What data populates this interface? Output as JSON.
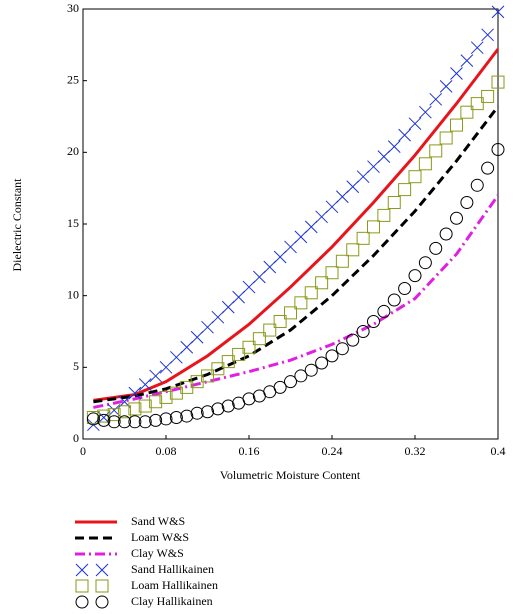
{
  "chart_data": {
    "type": "line",
    "x_label": "Volumetric Moisture Content",
    "y_label": "Dielectric Constant",
    "xlim": [
      0,
      0.4
    ],
    "xticks": [
      0,
      0.08,
      0.16,
      0.24,
      0.32,
      0.4
    ],
    "ylim": [
      0,
      30
    ],
    "yticks": [
      0,
      5,
      10,
      15,
      20,
      25,
      30
    ],
    "grid": false,
    "series": [
      {
        "name": "Sand W&S",
        "color": "#e8141c",
        "style": "solid",
        "x": [
          0.01,
          0.05,
          0.08,
          0.12,
          0.16,
          0.2,
          0.24,
          0.28,
          0.32,
          0.36,
          0.4
        ],
        "values": [
          2.7,
          3.1,
          4.0,
          5.8,
          8.0,
          10.6,
          13.4,
          16.5,
          19.8,
          23.4,
          27.2
        ]
      },
      {
        "name": "Loam W&S",
        "color": "#000000",
        "style": "dash",
        "x": [
          0.01,
          0.05,
          0.08,
          0.12,
          0.16,
          0.2,
          0.24,
          0.28,
          0.32,
          0.36,
          0.4
        ],
        "values": [
          2.6,
          3.0,
          3.5,
          4.5,
          5.8,
          7.6,
          10.0,
          12.8,
          15.9,
          19.4,
          23.2
        ]
      },
      {
        "name": "Clay W&S",
        "color": "#e020e0",
        "style": "dashdot",
        "x": [
          0.01,
          0.05,
          0.08,
          0.12,
          0.16,
          0.2,
          0.24,
          0.28,
          0.32,
          0.36,
          0.4
        ],
        "values": [
          2.2,
          2.8,
          3.3,
          4.0,
          4.7,
          5.5,
          6.6,
          8.0,
          9.8,
          12.9,
          17.0
        ]
      },
      {
        "name": "Sand Hallikainen",
        "color": "#1a33d6",
        "marker": "x",
        "x": [
          0.01,
          0.02,
          0.03,
          0.04,
          0.05,
          0.06,
          0.07,
          0.08,
          0.09,
          0.1,
          0.11,
          0.12,
          0.13,
          0.14,
          0.15,
          0.16,
          0.17,
          0.18,
          0.19,
          0.2,
          0.21,
          0.22,
          0.23,
          0.24,
          0.25,
          0.26,
          0.27,
          0.28,
          0.29,
          0.3,
          0.31,
          0.32,
          0.33,
          0.34,
          0.35,
          0.36,
          0.37,
          0.38,
          0.39,
          0.4
        ],
        "values": [
          1.0,
          1.5,
          2.0,
          2.6,
          3.2,
          3.8,
          4.4,
          5.0,
          5.7,
          6.4,
          7.1,
          7.8,
          8.5,
          9.2,
          9.9,
          10.6,
          11.3,
          12.0,
          12.7,
          13.4,
          14.1,
          14.8,
          15.5,
          16.2,
          16.9,
          17.6,
          18.3,
          19.0,
          19.7,
          20.4,
          21.2,
          22.0,
          22.8,
          23.7,
          24.6,
          25.5,
          26.4,
          27.3,
          28.2,
          29.8
        ]
      },
      {
        "name": "Loam Hallikainen",
        "color": "#8a9a1a",
        "marker": "square",
        "x": [
          0.01,
          0.02,
          0.03,
          0.04,
          0.05,
          0.06,
          0.07,
          0.08,
          0.09,
          0.1,
          0.11,
          0.12,
          0.13,
          0.14,
          0.15,
          0.16,
          0.17,
          0.18,
          0.19,
          0.2,
          0.21,
          0.22,
          0.23,
          0.24,
          0.25,
          0.26,
          0.27,
          0.28,
          0.29,
          0.3,
          0.31,
          0.32,
          0.33,
          0.34,
          0.35,
          0.36,
          0.37,
          0.38,
          0.39,
          0.4
        ],
        "values": [
          1.5,
          1.6,
          1.7,
          1.9,
          2.1,
          2.3,
          2.6,
          2.9,
          3.2,
          3.6,
          4.0,
          4.4,
          4.9,
          5.4,
          5.9,
          6.4,
          7.0,
          7.6,
          8.2,
          8.8,
          9.5,
          10.2,
          10.9,
          11.6,
          12.4,
          13.2,
          14.0,
          14.8,
          15.6,
          16.5,
          17.4,
          18.3,
          19.2,
          20.1,
          21.0,
          21.9,
          22.8,
          23.4,
          23.9,
          24.9
        ]
      },
      {
        "name": "Clay Hallikainen",
        "color": "#000000",
        "marker": "circle",
        "x": [
          0.01,
          0.02,
          0.03,
          0.04,
          0.05,
          0.06,
          0.07,
          0.08,
          0.09,
          0.1,
          0.11,
          0.12,
          0.13,
          0.14,
          0.15,
          0.16,
          0.17,
          0.18,
          0.19,
          0.2,
          0.21,
          0.22,
          0.23,
          0.24,
          0.25,
          0.26,
          0.27,
          0.28,
          0.29,
          0.3,
          0.31,
          0.32,
          0.33,
          0.34,
          0.35,
          0.36,
          0.37,
          0.38,
          0.39,
          0.4
        ],
        "values": [
          1.4,
          1.3,
          1.2,
          1.2,
          1.2,
          1.2,
          1.3,
          1.4,
          1.5,
          1.6,
          1.8,
          1.9,
          2.1,
          2.3,
          2.5,
          2.8,
          3.0,
          3.3,
          3.6,
          4.0,
          4.4,
          4.8,
          5.3,
          5.8,
          6.3,
          6.9,
          7.5,
          8.2,
          8.9,
          9.7,
          10.5,
          11.4,
          12.3,
          13.3,
          14.3,
          15.4,
          16.5,
          17.7,
          18.9,
          20.2
        ]
      }
    ]
  }
}
